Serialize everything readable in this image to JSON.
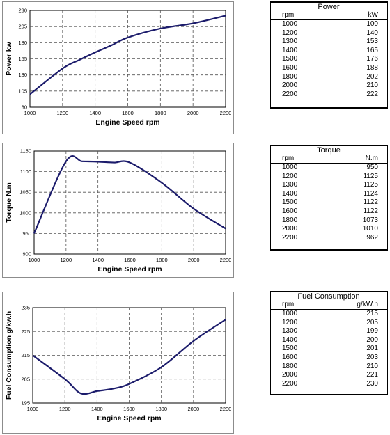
{
  "chart_data": [
    {
      "type": "line",
      "xlabel": "Engine Speed rpm",
      "ylabel": "Power kw",
      "xlim": [
        1000,
        2200
      ],
      "ylim": [
        80,
        230
      ],
      "xticks": [
        "1000",
        "1200",
        "1400",
        "1600",
        "1800",
        "2000",
        "2200"
      ],
      "yticks": [
        "80",
        "105",
        "130",
        "155",
        "180",
        "205",
        "230"
      ],
      "grid": true,
      "color": "#1b1b6b",
      "series": [
        {
          "x": [
            1000,
            1200,
            1300,
            1400,
            1500,
            1600,
            1800,
            2000,
            2200
          ],
          "y": [
            100,
            140,
            153,
            165,
            176,
            188,
            202,
            210,
            222
          ]
        }
      ]
    },
    {
      "type": "line",
      "xlabel": "Engine Speed rpm",
      "ylabel": "Torque N.m",
      "xlim": [
        1000,
        2200
      ],
      "ylim": [
        900,
        1150
      ],
      "xticks": [
        "1000",
        "1200",
        "1400",
        "1600",
        "1800",
        "2000",
        "2200"
      ],
      "yticks": [
        "900",
        "950",
        "1000",
        "1050",
        "1100",
        "1150"
      ],
      "grid": true,
      "color": "#1b1b6b",
      "series": [
        {
          "x": [
            1000,
            1200,
            1300,
            1400,
            1500,
            1600,
            1800,
            2000,
            2200
          ],
          "y": [
            950,
            1125,
            1125,
            1124,
            1122,
            1122,
            1073,
            1010,
            962
          ]
        }
      ]
    },
    {
      "type": "line",
      "xlabel": "Engine Speed rpm",
      "ylabel": "Fuel Consumption g/kw.h",
      "xlim": [
        1000,
        2200
      ],
      "ylim": [
        195,
        235
      ],
      "xticks": [
        "1000",
        "1200",
        "1400",
        "1600",
        "1800",
        "2000",
        "2200"
      ],
      "yticks": [
        "195",
        "205",
        "215",
        "225",
        "235"
      ],
      "grid": true,
      "color": "#1b1b6b",
      "series": [
        {
          "x": [
            1000,
            1200,
            1300,
            1400,
            1500,
            1600,
            1800,
            2000,
            2200
          ],
          "y": [
            215,
            205,
            199,
            200,
            201,
            203,
            210,
            221,
            230
          ]
        }
      ]
    }
  ],
  "tables": [
    {
      "title": "Power",
      "col1": "rpm",
      "col2": "kW",
      "rows": [
        [
          "1000",
          "100"
        ],
        [
          "1200",
          "140"
        ],
        [
          "1300",
          "153"
        ],
        [
          "1400",
          "165"
        ],
        [
          "1500",
          "176"
        ],
        [
          "1600",
          "188"
        ],
        [
          "1800",
          "202"
        ],
        [
          "2000",
          "210"
        ],
        [
          "2200",
          "222"
        ]
      ]
    },
    {
      "title": "Torque",
      "col1": "rpm",
      "col2": "N.m",
      "rows": [
        [
          "1000",
          "950"
        ],
        [
          "1200",
          "1125"
        ],
        [
          "1300",
          "1125"
        ],
        [
          "1400",
          "1124"
        ],
        [
          "1500",
          "1122"
        ],
        [
          "1600",
          "1122"
        ],
        [
          "1800",
          "1073"
        ],
        [
          "2000",
          "1010"
        ],
        [
          "2200",
          "962"
        ]
      ]
    },
    {
      "title": "Fuel Consumption",
      "col1": "rpm",
      "col2": "g/kW.h",
      "rows": [
        [
          "1000",
          "215"
        ],
        [
          "1200",
          "205"
        ],
        [
          "1300",
          "199"
        ],
        [
          "1400",
          "200"
        ],
        [
          "1500",
          "201"
        ],
        [
          "1600",
          "203"
        ],
        [
          "1800",
          "210"
        ],
        [
          "2000",
          "221"
        ],
        [
          "2200",
          "230"
        ]
      ]
    }
  ]
}
